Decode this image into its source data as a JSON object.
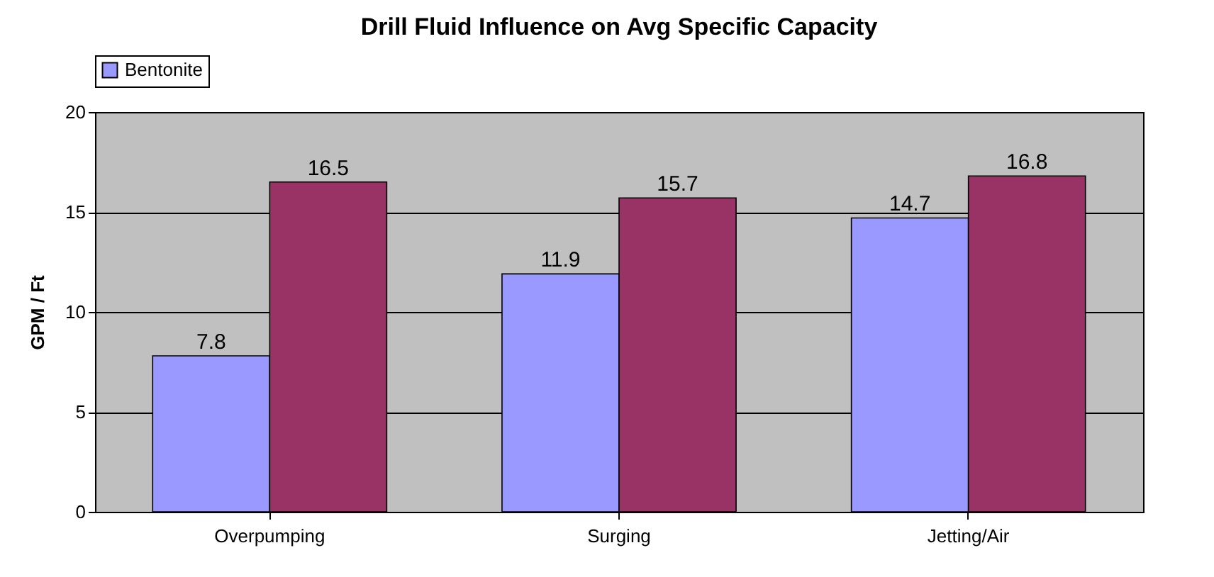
{
  "chart_data": {
    "type": "bar",
    "title": "Drill Fluid Influence on Avg Specific Capacity",
    "ylabel": "GPM / Ft",
    "categories": [
      "Overpumping",
      "Surging",
      "Jetting/Air"
    ],
    "series": [
      {
        "name": "Bentonite",
        "color": "#9999ff",
        "values": [
          7.8,
          11.9,
          14.7
        ]
      },
      {
        "color": "#993366",
        "values": [
          16.5,
          15.7,
          16.8
        ]
      }
    ],
    "ylim": [
      0,
      20
    ],
    "yticks": [
      0,
      5,
      10,
      15,
      20
    ],
    "grid": "y",
    "legend": "top",
    "data_labels": true
  }
}
